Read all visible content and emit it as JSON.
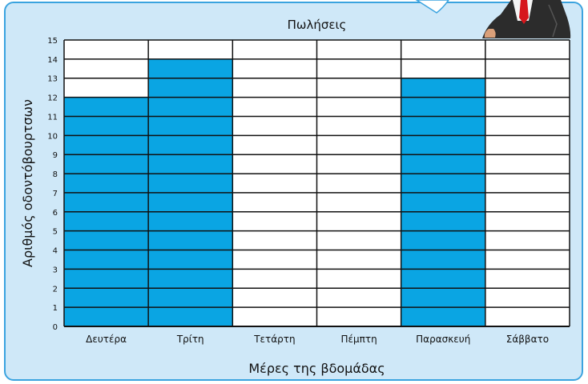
{
  "chart_data": {
    "type": "bar",
    "title": "Πωλήσεις",
    "xlabel": "Μέρες της βδομάδας",
    "ylabel": "Αριθμός οδοντόβουρτσων",
    "categories": [
      "Δευτέρα",
      "Τρίτη",
      "Τετάρτη",
      "Πέμπτη",
      "Παρασκευή",
      "Σάββατο"
    ],
    "values": [
      12,
      14,
      0,
      0,
      13,
      0
    ],
    "ylim": [
      0,
      15
    ],
    "yticks": [
      0,
      1,
      2,
      3,
      4,
      5,
      6,
      7,
      8,
      9,
      10,
      11,
      12,
      13,
      14,
      15
    ],
    "grid": true,
    "colors": {
      "bar_fill": "#0aa5e3",
      "grid_line": "#111111",
      "panel_background": "#cfe8f8",
      "panel_border": "#3aa3df",
      "callout_border": "#3aa3df",
      "figure_suit": "#2c2c2c",
      "figure_tie": "#d6161c",
      "figure_skin": "#d9a07a"
    }
  }
}
